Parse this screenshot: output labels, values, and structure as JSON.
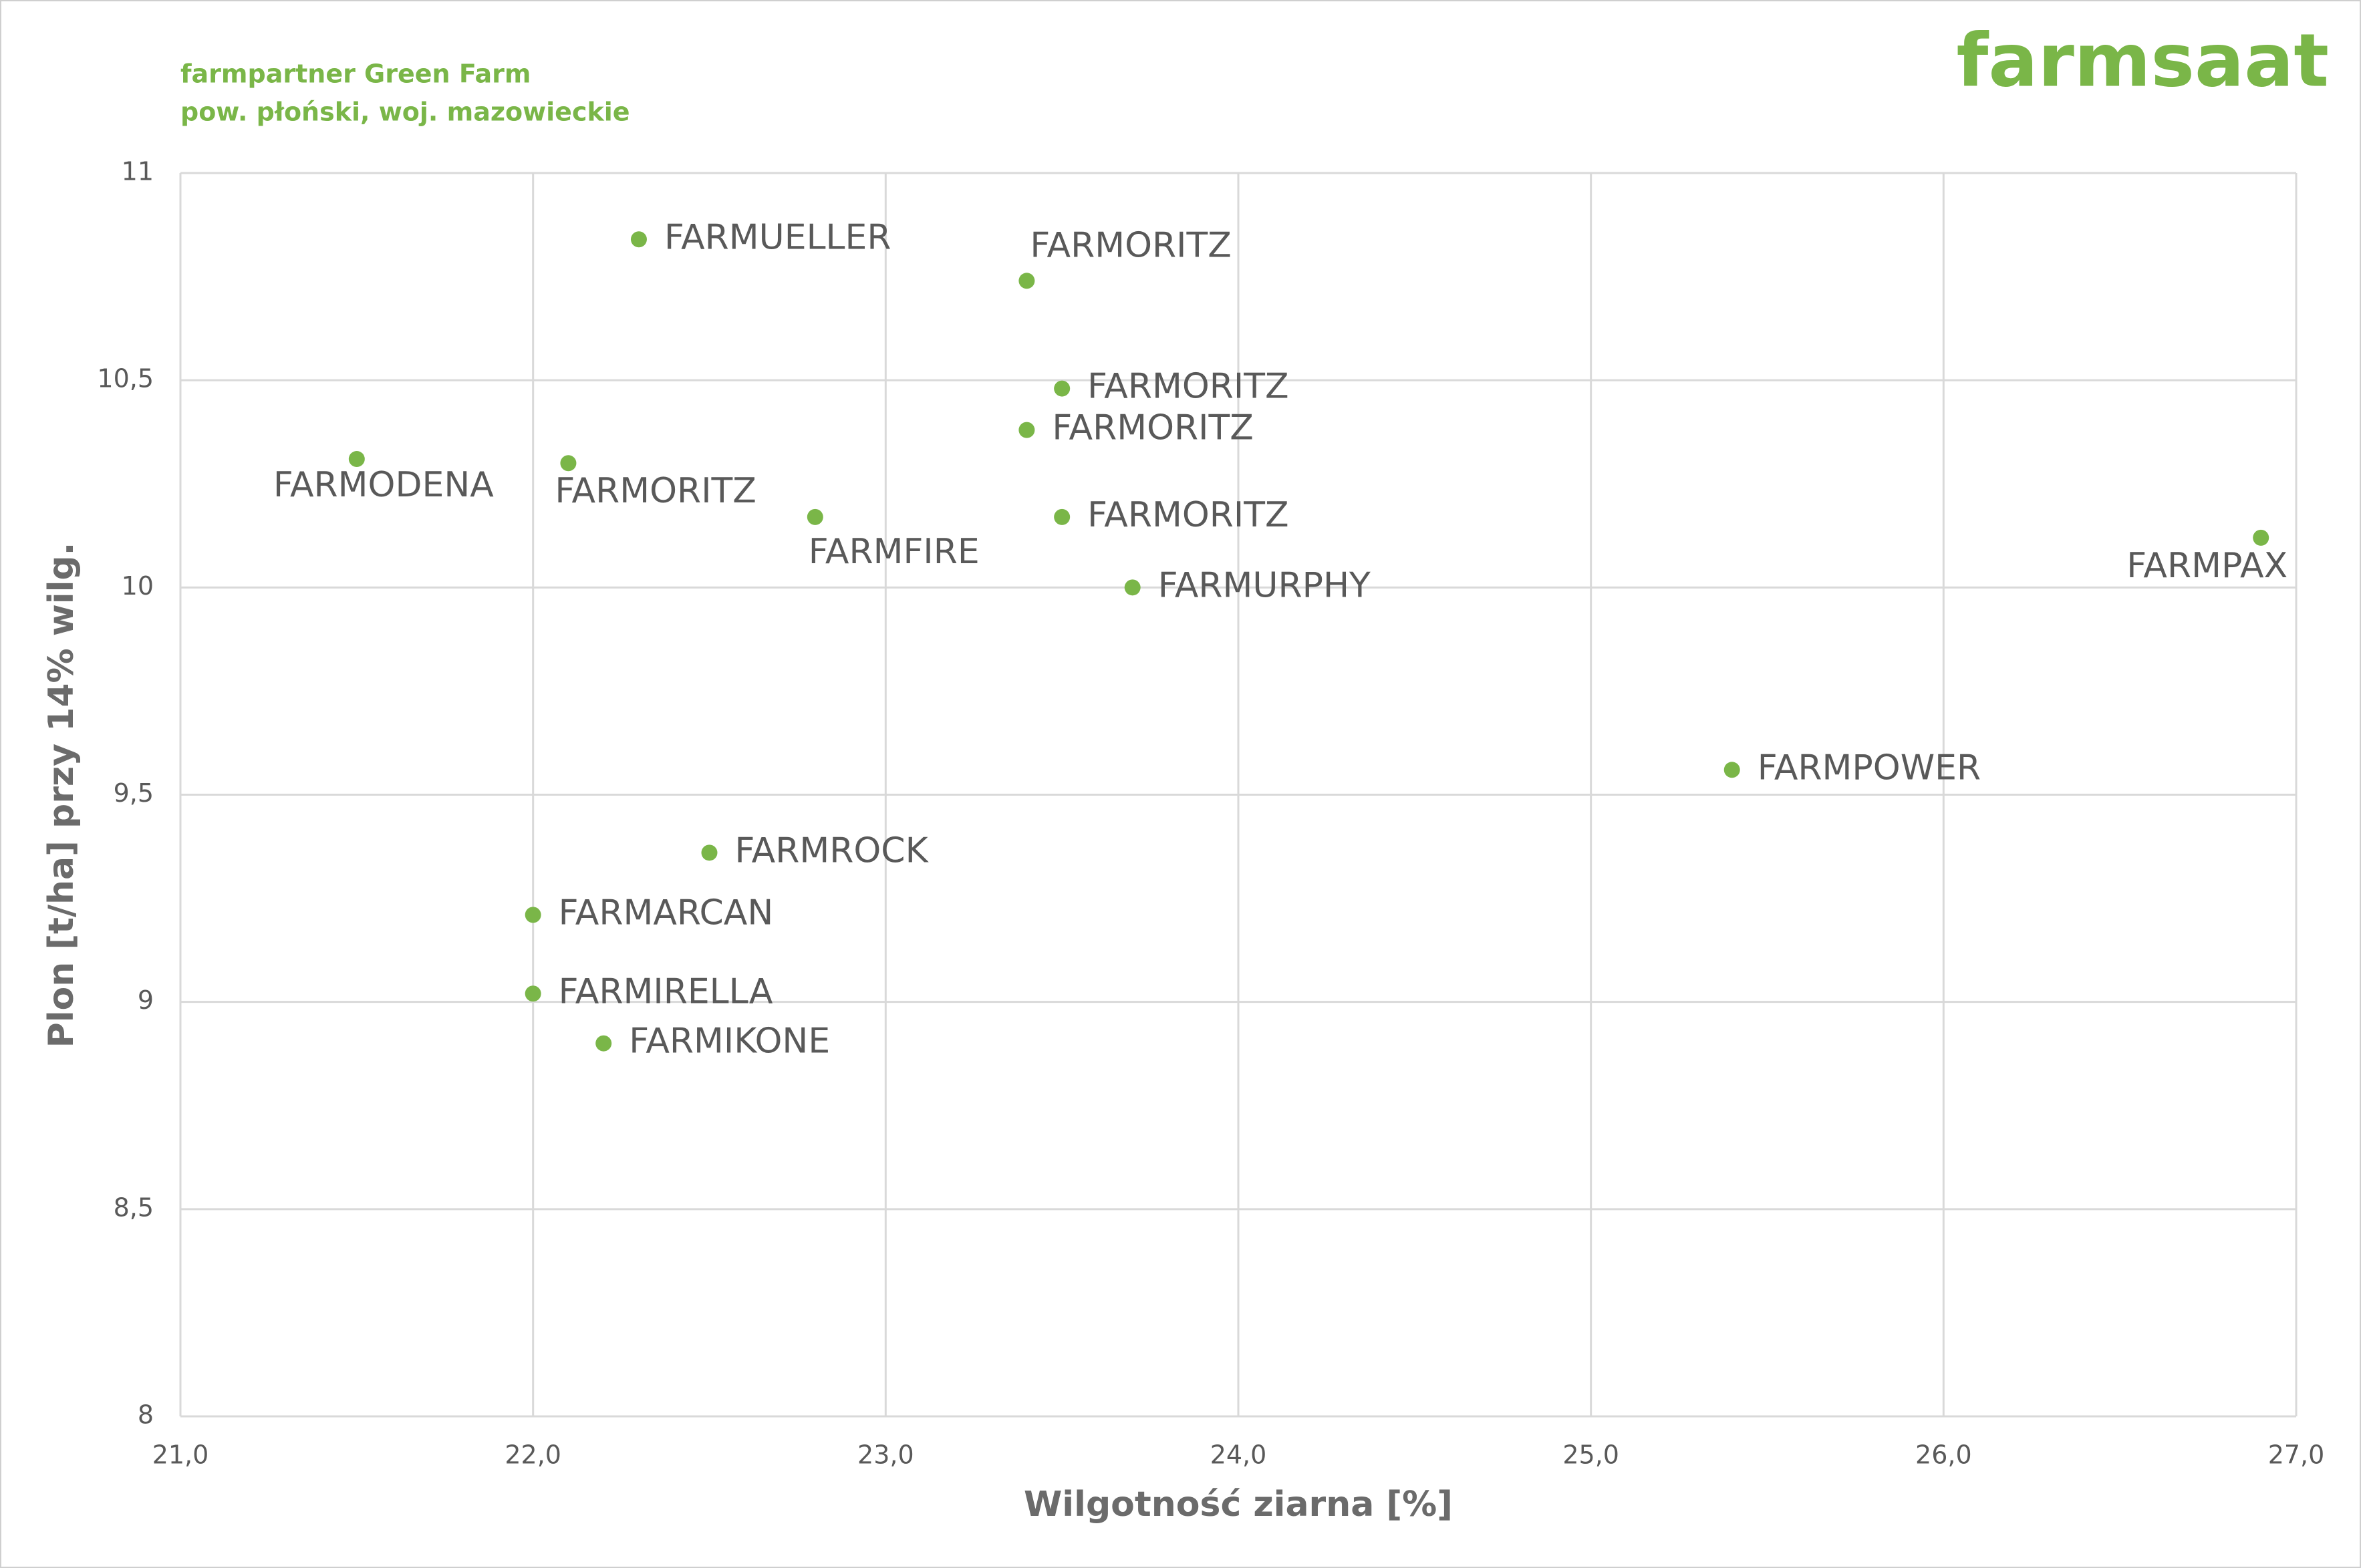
{
  "chart_data": {
    "type": "scatter",
    "header": [
      "farmpartner Green Farm",
      "pow. płoński, woj. mazowieckie"
    ],
    "logo": "farmsaat",
    "x_label": "Wilgotność ziarna [%]",
    "y_label": "Plon [t/ha] przy 14% wilg.",
    "xlim": [
      21,
      27
    ],
    "xticks": [
      {
        "value": 21,
        "label": "21,0"
      },
      {
        "value": 22,
        "label": "22,0"
      },
      {
        "value": 23,
        "label": "23,0"
      },
      {
        "value": 24,
        "label": "24,0"
      },
      {
        "value": 25,
        "label": "25,0"
      },
      {
        "value": 26,
        "label": "26,0"
      },
      {
        "value": 27,
        "label": "27,0"
      }
    ],
    "ylim": [
      8,
      11
    ],
    "yticks": [
      8,
      {
        "value": 8.5,
        "label": "8,5"
      },
      9,
      {
        "value": 9.5,
        "label": "9,5"
      },
      10,
      {
        "value": 10.5,
        "label": "10,5"
      },
      11
    ],
    "grid": true,
    "series": [
      {
        "color": "#7ab648",
        "labels": [
          "FARMUELLER",
          "FARMORITZ",
          "FARMORITZ",
          "FARMORITZ",
          "FARMODENA",
          "FARMORITZ",
          "FARMFIRE",
          "FARMORITZ",
          "FARMURPHY",
          "FARMPAX",
          "FARMPOWER",
          "FARMROCK",
          "FARMARCAN",
          "FARMIRELLA",
          "FARMIKONE"
        ],
        "x": [
          22.3,
          23.4,
          23.5,
          23.4,
          21.5,
          22.1,
          22.8,
          23.5,
          23.7,
          26.9,
          25.4,
          22.5,
          22.0,
          22.0,
          22.2
        ],
        "values": [
          10.84,
          10.74,
          10.48,
          10.38,
          10.31,
          10.3,
          10.17,
          10.17,
          10.0,
          10.12,
          9.56,
          9.36,
          9.21,
          9.02,
          8.9
        ]
      }
    ]
  }
}
